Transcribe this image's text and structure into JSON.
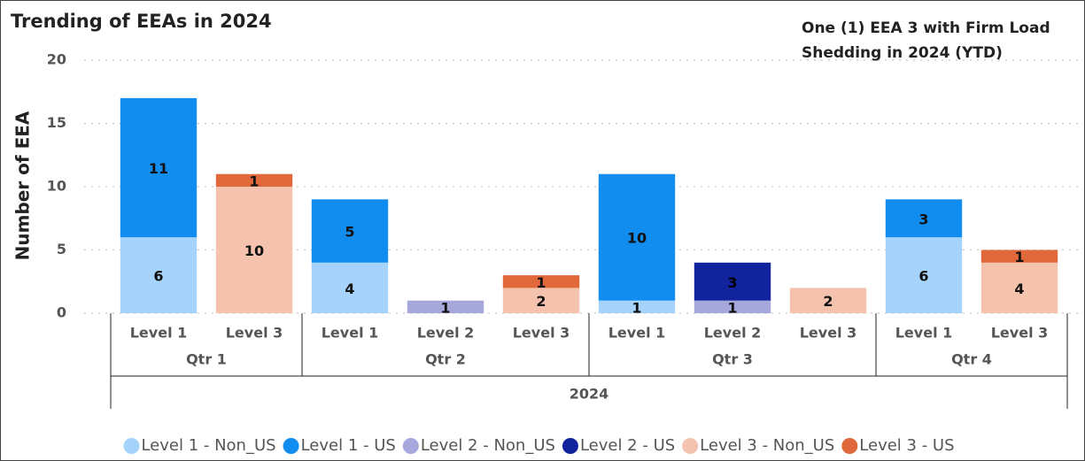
{
  "chart_data": {
    "type": "stacked_bar",
    "title": "Trending of EEAs in 2024",
    "annotation": [
      "One (1) EEA 3 with Firm Load",
      "Shedding in 2024 (YTD)"
    ],
    "y_label": "Number of EEA",
    "year": "2024",
    "groups": [
      {
        "name": "Qtr 1",
        "categories": [
          "Level 1",
          "Level 3"
        ]
      },
      {
        "name": "Qtr 2",
        "categories": [
          "Level 1",
          "Level 2",
          "Level 3"
        ]
      },
      {
        "name": "Qtr 3",
        "categories": [
          "Level 1",
          "Level 2",
          "Level 3"
        ]
      },
      {
        "name": "Qtr 4",
        "categories": [
          "Level 1",
          "Level 3"
        ]
      }
    ],
    "series": [
      {
        "name": "Level 1 - Non_US",
        "color": "#a5d3fb",
        "values": [
          6,
          null,
          4,
          null,
          null,
          1,
          null,
          null,
          6,
          null
        ]
      },
      {
        "name": "Level 1 - US",
        "color": "#118df0",
        "values": [
          11,
          null,
          5,
          null,
          null,
          10,
          null,
          null,
          3,
          null
        ]
      },
      {
        "name": "Level 2 - Non_US",
        "color": "#a6a8dc",
        "values": [
          null,
          null,
          null,
          1,
          null,
          null,
          1,
          null,
          null,
          null
        ]
      },
      {
        "name": "Level 2 - US",
        "color": "#12239e",
        "values": [
          null,
          null,
          null,
          null,
          null,
          null,
          3,
          null,
          null,
          null
        ]
      },
      {
        "name": "Level 3 - Non_US",
        "color": "#f4c2ad",
        "values": [
          null,
          10,
          null,
          null,
          2,
          null,
          null,
          2,
          null,
          4
        ]
      },
      {
        "name": "Level 3 - US",
        "color": "#e0683b",
        "values": [
          null,
          1,
          null,
          null,
          1,
          null,
          null,
          null,
          null,
          1
        ]
      }
    ],
    "ylim": [
      0,
      20
    ],
    "yticks": [
      0,
      5,
      10,
      15,
      20
    ],
    "grid": true,
    "legend": "bottom"
  }
}
